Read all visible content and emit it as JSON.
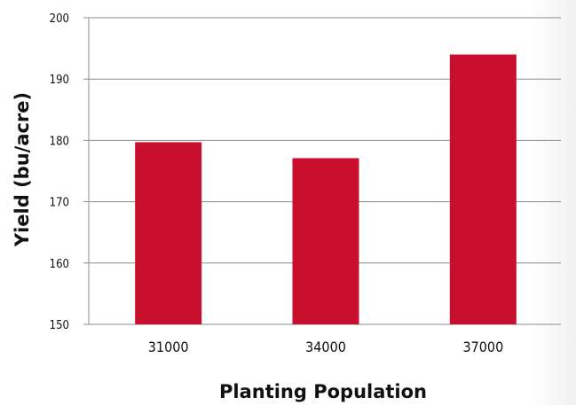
{
  "chart_data": {
    "type": "bar",
    "categories": [
      "31000",
      "34000",
      "37000"
    ],
    "values": [
      179.7,
      177.1,
      194.0
    ],
    "title": "",
    "xlabel": "Planting Population",
    "ylabel": "Yield (bu/acre)",
    "ylim": [
      150,
      200
    ],
    "yticks": [
      "150",
      "160",
      "170",
      "180",
      "190",
      "200"
    ],
    "grid": true,
    "legend": "none",
    "bar_color": "#c8102e"
  }
}
